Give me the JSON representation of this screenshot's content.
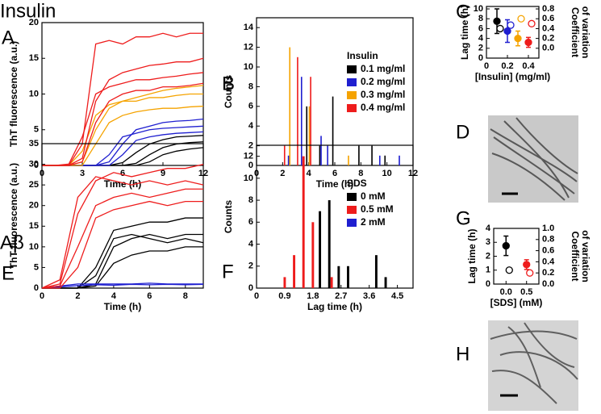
{
  "figure": {
    "sections": [
      "Insulin",
      "Aβ"
    ],
    "image_panels": [
      "D",
      "H"
    ]
  },
  "chart_data": [
    {
      "type": "line",
      "panel": "A",
      "xlabel": "Time (h)",
      "ylabel": "ThT fluorescence (a.u.)",
      "x": [
        0,
        1,
        2,
        3,
        4,
        5,
        6,
        7,
        8,
        9,
        10,
        11,
        12
      ],
      "xlim": [
        0,
        12
      ],
      "xticks": [
        0,
        3,
        6,
        9,
        12
      ],
      "ylim": [
        0,
        20
      ],
      "yticks": [
        0,
        5,
        10,
        15,
        20
      ],
      "series": [
        {
          "color": "#000000",
          "values": [
            0,
            0,
            0,
            0,
            0,
            0,
            0,
            0.3,
            1.5,
            2.5,
            3,
            3.2,
            3.3
          ]
        },
        {
          "color": "#000000",
          "values": [
            0,
            0,
            0,
            0,
            0,
            0,
            0.4,
            1.8,
            3,
            3.6,
            4,
            4.1,
            4.2
          ]
        },
        {
          "color": "#000000",
          "values": [
            0,
            0,
            0,
            0,
            0,
            0,
            0,
            0,
            0.5,
            1.5,
            2,
            2.3,
            2.5
          ]
        },
        {
          "color": "#1f1fd0",
          "values": [
            0,
            0,
            0,
            0,
            0,
            0.5,
            3,
            5,
            5.5,
            6,
            6.2,
            6.3,
            6.5
          ]
        },
        {
          "color": "#1f1fd0",
          "values": [
            0,
            0,
            0,
            0,
            0,
            1.5,
            4,
            4.5,
            5,
            5.2,
            5.3,
            5.4,
            5.5
          ]
        },
        {
          "color": "#1f1fd0",
          "values": [
            0,
            0,
            0,
            0,
            0,
            0,
            1.5,
            3.5,
            4,
            4.3,
            4.5,
            4.6,
            4.7
          ]
        },
        {
          "color": "#f5a300",
          "values": [
            0,
            0,
            0,
            0.5,
            5,
            8,
            9,
            9.5,
            10,
            10.5,
            10.8,
            11,
            11.2
          ]
        },
        {
          "color": "#f5a300",
          "values": [
            0,
            0,
            0,
            2,
            7,
            8.5,
            9,
            9,
            9.5,
            9.5,
            9.8,
            10,
            10
          ]
        },
        {
          "color": "#f5a300",
          "values": [
            0,
            0,
            0,
            0,
            3,
            6,
            7,
            7.5,
            7.8,
            8,
            8,
            8.2,
            8.3
          ]
        },
        {
          "color": "#ee1c1c",
          "values": [
            0,
            0,
            0,
            1,
            9,
            12,
            13,
            13.5,
            14,
            14.2,
            14.5,
            14.5,
            15
          ]
        },
        {
          "color": "#ee1c1c",
          "values": [
            0,
            0,
            0.2,
            4,
            10,
            11,
            11.5,
            12,
            12,
            12.3,
            12.5,
            12.8,
            13
          ]
        },
        {
          "color": "#ee1c1c",
          "values": [
            0,
            0,
            0,
            0.5,
            6,
            9,
            10,
            10.5,
            10.5,
            11,
            11,
            11.2,
            11.5
          ]
        },
        {
          "color": "#ee1c1c",
          "values": [
            0,
            0,
            0,
            3,
            17,
            17.5,
            17,
            18,
            18,
            18.5,
            18,
            18.5,
            18.5
          ]
        }
      ]
    },
    {
      "type": "bar",
      "panel": "B",
      "xlabel": "Time (h)",
      "ylabel": "Counts",
      "legend_title": "Insulin",
      "legend": "upper right",
      "x": [
        2,
        2.5,
        3,
        3.5,
        4,
        4.5,
        5,
        5.5,
        6,
        6.5,
        7,
        8,
        8.5,
        9,
        9.5,
        10,
        11
      ],
      "xlim": [
        0,
        12
      ],
      "xticks": [
        0,
        2,
        4,
        6,
        8,
        10,
        12
      ],
      "ylim": [
        0,
        15
      ],
      "yticks": [
        0,
        2,
        4,
        6,
        8,
        10,
        12,
        14
      ],
      "series": [
        {
          "name": "0.1 mg/ml",
          "color": "#000000",
          "values": [
            0,
            0,
            0,
            0,
            6,
            0,
            2,
            0,
            7,
            0,
            0,
            2,
            0,
            2,
            0,
            1,
            0
          ]
        },
        {
          "name": "0.2 mg/ml",
          "color": "#1f1fd0",
          "values": [
            0,
            1,
            0,
            9,
            0,
            0,
            3,
            2,
            0,
            0,
            0,
            0,
            0,
            0,
            1,
            0,
            1
          ]
        },
        {
          "name": "0.3 mg/ml",
          "color": "#f5a300",
          "values": [
            0,
            12,
            0,
            0,
            6,
            0,
            0,
            0,
            0,
            0,
            1,
            0,
            0,
            0,
            0,
            0,
            0
          ]
        },
        {
          "name": "0.4 mg/ml",
          "color": "#ee1c1c",
          "values": [
            2,
            0,
            11,
            0,
            9,
            0,
            0,
            0,
            0,
            0,
            0,
            0,
            0,
            0,
            0,
            0,
            0
          ]
        }
      ]
    },
    {
      "type": "scatter",
      "panel": "C",
      "xlabel": "[Insulin] (mg/ml)",
      "ylabel": "Lag time (h)",
      "y2label": [
        "Coefficient",
        "of variation"
      ],
      "x": [
        0.1,
        0.2,
        0.3,
        0.4
      ],
      "xlim": [
        0,
        0.5
      ],
      "xticks": [
        0,
        0.2,
        0.4
      ],
      "ylim": [
        0,
        10.5
      ],
      "yticks": [
        0,
        2,
        4,
        6,
        8,
        10
      ],
      "y2lim": [
        -0.2,
        0.85
      ],
      "y2ticks": [
        {
          "value": 0,
          "label": "0.0"
        },
        0.2,
        0.4,
        0.6,
        0.8
      ],
      "series": [
        {
          "marker": "filled",
          "colors": [
            "#000000",
            "#1f1fd0",
            "#f5a300",
            "#ee1c1c"
          ],
          "values": [
            7.5,
            5.5,
            4,
            3.2
          ],
          "errors": [
            2.5,
            2.3,
            1.5,
            1
          ]
        },
        {
          "marker": "open",
          "axis": "y2",
          "colors": [
            "#000000",
            "#1f1fd0",
            "#f5a300",
            "#ee1c1c"
          ],
          "values": [
            0.4,
            0.47,
            0.6,
            0.5
          ]
        }
      ]
    },
    {
      "type": "line",
      "panel": "E",
      "xlabel": "Time (h)",
      "ylabel": "ThT fluorescence (a.u.)",
      "x": [
        0,
        1,
        2,
        3,
        4,
        5,
        6,
        7,
        8,
        9
      ],
      "xlim": [
        0,
        9
      ],
      "xticks": [
        0,
        2,
        4,
        6,
        8
      ],
      "ylim": [
        0,
        35
      ],
      "yticks": [
        0,
        5,
        10,
        15,
        20,
        25,
        30,
        35
      ],
      "series": [
        {
          "color": "#000000",
          "values": [
            0,
            0,
            0,
            5,
            14,
            15,
            16,
            16,
            17,
            17
          ]
        },
        {
          "color": "#000000",
          "values": [
            0,
            0,
            0,
            1,
            10,
            12,
            13,
            12,
            13,
            13
          ]
        },
        {
          "color": "#000000",
          "values": [
            0,
            0,
            0,
            3,
            12,
            13,
            12,
            11,
            12,
            11
          ]
        },
        {
          "color": "#000000",
          "values": [
            0,
            0,
            0,
            0.5,
            6,
            8,
            9,
            9,
            10,
            10
          ]
        },
        {
          "color": "#1f1fd0",
          "values": [
            0,
            0.5,
            1,
            1,
            1,
            1,
            1.2,
            1,
            1,
            1
          ]
        },
        {
          "color": "#1f1fd0",
          "values": [
            0,
            0.3,
            0.6,
            0.8,
            0.7,
            0.9,
            0.8,
            0.9,
            0.8,
            0.9
          ]
        },
        {
          "color": "#ee1c1c",
          "values": [
            0,
            1,
            18,
            26,
            28,
            27,
            28,
            29,
            29,
            30
          ]
        },
        {
          "color": "#ee1c1c",
          "values": [
            0,
            0.5,
            10,
            20,
            22,
            23,
            22,
            23,
            24,
            24
          ]
        },
        {
          "color": "#ee1c1c",
          "values": [
            0,
            0,
            5,
            17,
            19,
            20,
            21,
            20,
            21,
            21
          ]
        },
        {
          "color": "#ee1c1c",
          "values": [
            0,
            2,
            22,
            27,
            26,
            25,
            26,
            25,
            26,
            25
          ]
        }
      ]
    },
    {
      "type": "bar",
      "panel": "F",
      "xlabel": "Lag time (h)",
      "ylabel": "Counts",
      "legend_title": "SDS",
      "legend": "upper right",
      "x": [
        0.9,
        1.2,
        1.5,
        1.8,
        2.1,
        2.4,
        2.7,
        3.0,
        3.3,
        3.6,
        3.9,
        4.2
      ],
      "xlim": [
        0,
        5
      ],
      "xticks": [
        0,
        0.9,
        1.8,
        2.7,
        3.6,
        4.5
      ],
      "ylim": [
        0,
        13
      ],
      "yticks": [
        0,
        2,
        4,
        6,
        8,
        10,
        12
      ],
      "series": [
        {
          "name": "0 mM",
          "color": "#000000",
          "values": [
            0,
            0,
            0,
            0,
            7,
            8,
            2,
            2,
            0,
            0,
            3,
            1
          ]
        },
        {
          "name": "0.5 mM",
          "color": "#ee1c1c",
          "values": [
            1,
            3,
            12,
            6,
            0,
            1,
            0,
            0,
            0,
            0,
            0,
            0
          ]
        },
        {
          "name": "2 mM",
          "color": "#1f1fd0",
          "values": [
            0,
            0,
            0,
            0,
            0,
            0,
            0,
            0,
            0,
            0,
            0,
            0
          ]
        }
      ]
    },
    {
      "type": "scatter",
      "panel": "G",
      "xlabel": "[SDS] (mM)",
      "ylabel": "Lag time (h)",
      "y2label": [
        "Coefficient",
        "of variation"
      ],
      "x": [
        0,
        0.5
      ],
      "xlim": [
        -0.3,
        0.8
      ],
      "xticks": [
        {
          "value": 0,
          "label": "0.0"
        },
        0.5
      ],
      "ylim": [
        0,
        4
      ],
      "yticks": [
        0,
        1,
        2,
        3,
        4
      ],
      "y2lim": [
        0,
        1
      ],
      "y2ticks": [
        {
          "value": 0,
          "label": "0.0"
        },
        0.2,
        0.4,
        0.6,
        0.8,
        {
          "value": 1,
          "label": "1.0"
        }
      ],
      "series": [
        {
          "marker": "filled",
          "colors": [
            "#000000",
            "#ee1c1c"
          ],
          "values": [
            2.75,
            1.4
          ],
          "errors": [
            0.7,
            0.35
          ]
        },
        {
          "marker": "open",
          "axis": "y2",
          "colors": [
            "#000000",
            "#ee1c1c"
          ],
          "values": [
            0.25,
            0.2
          ]
        }
      ]
    }
  ]
}
